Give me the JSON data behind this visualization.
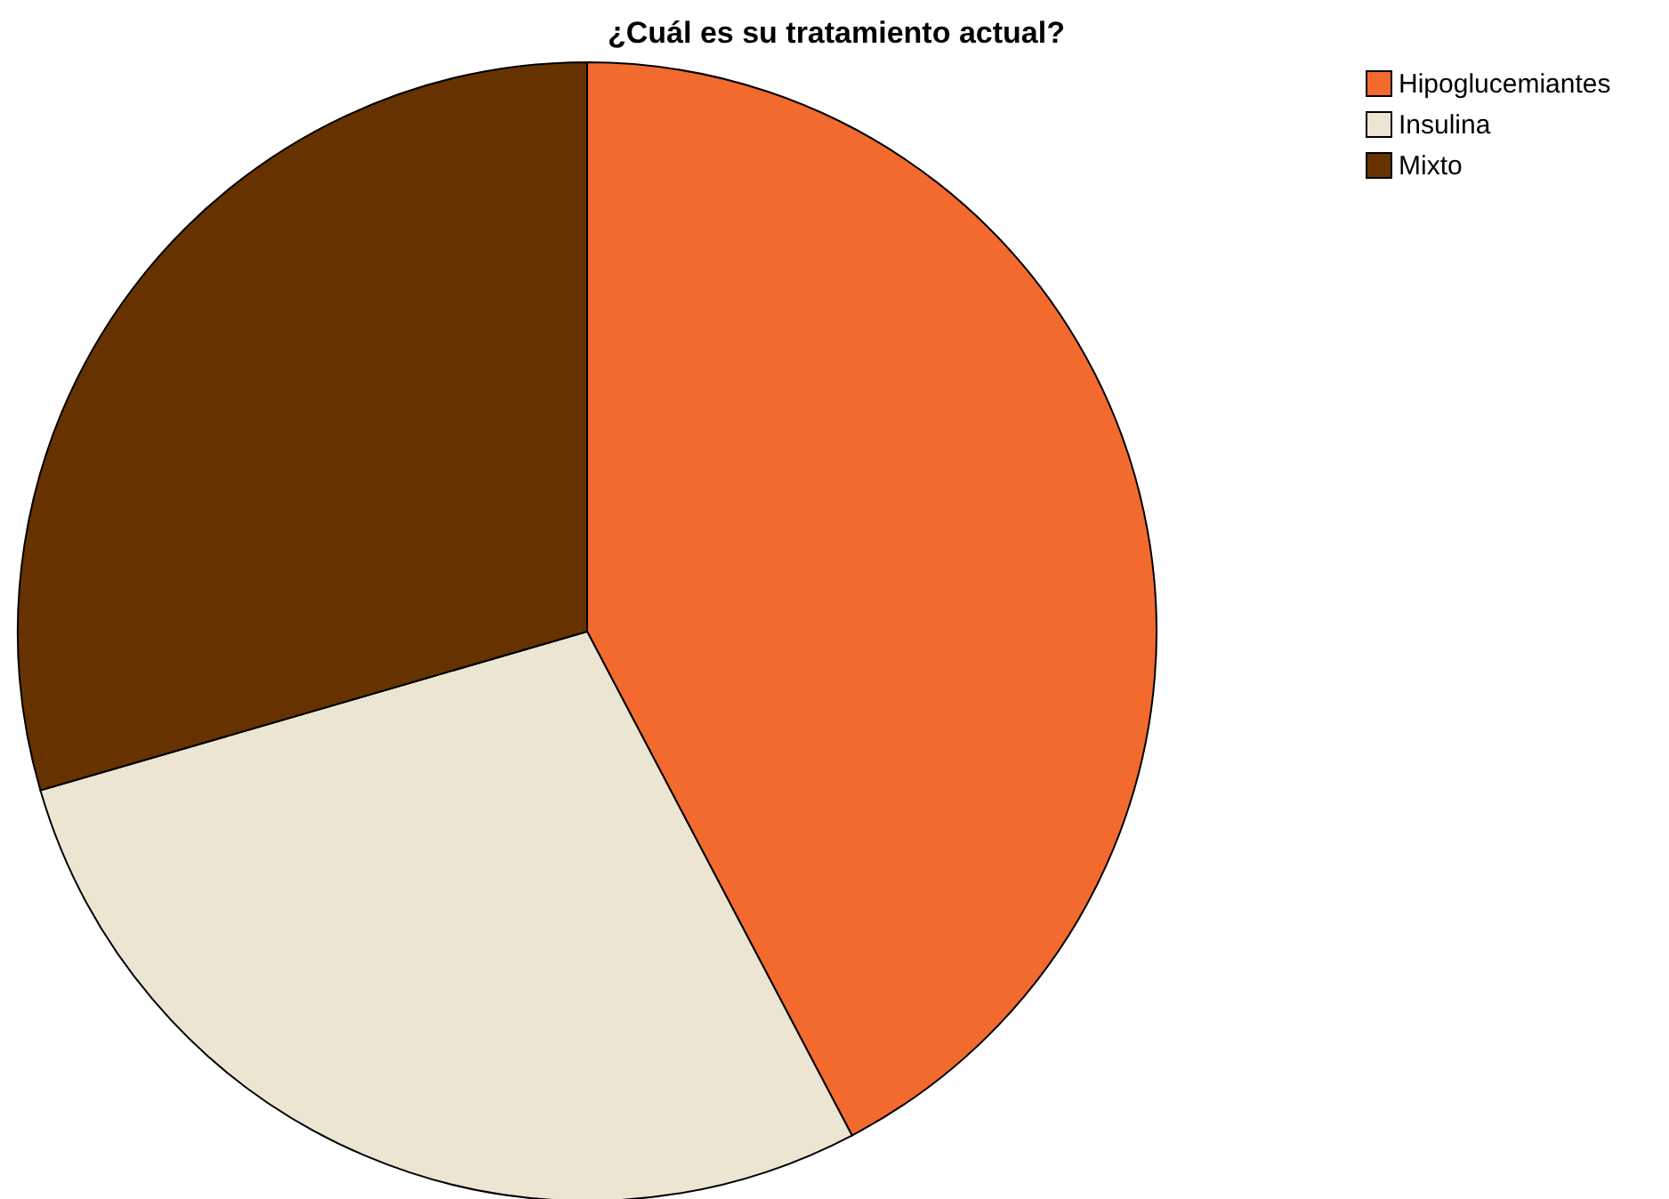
{
  "chart_data": {
    "type": "pie",
    "title": "¿Cuál es su tratamiento actual?",
    "categories": [
      "Hipoglucemiantes",
      "Insulina",
      "Mixto"
    ],
    "values": [
      42.3,
      28.2,
      29.5
    ],
    "colors": [
      "#f26a2e",
      "#ece5d2",
      "#663300"
    ],
    "legend": "top right"
  }
}
